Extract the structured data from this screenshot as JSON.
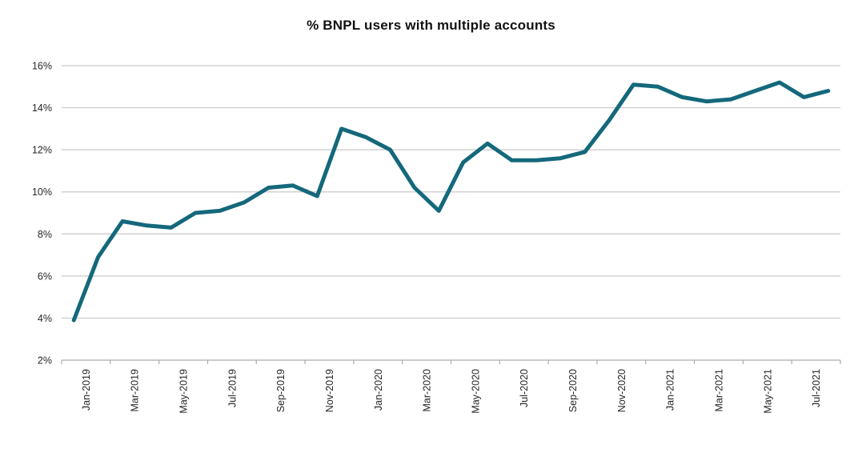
{
  "chart_data": {
    "type": "line",
    "title": "% BNPL users with multiple accounts",
    "x": [
      "Jan-2019",
      "Feb-2019",
      "Mar-2019",
      "Apr-2019",
      "May-2019",
      "Jun-2019",
      "Jul-2019",
      "Aug-2019",
      "Sep-2019",
      "Oct-2019",
      "Nov-2019",
      "Dec-2019",
      "Jan-2020",
      "Feb-2020",
      "Mar-2020",
      "Apr-2020",
      "May-2020",
      "Jun-2020",
      "Jul-2020",
      "Aug-2020",
      "Sep-2020",
      "Oct-2020",
      "Nov-2020",
      "Dec-2020",
      "Jan-2021",
      "Feb-2021",
      "Mar-2021",
      "Apr-2021",
      "May-2021",
      "Jun-2021",
      "Jul-2021",
      "Aug-2021"
    ],
    "series": [
      {
        "name": "% BNPL users with multiple accounts",
        "values": [
          3.9,
          6.9,
          8.6,
          8.4,
          8.3,
          9.0,
          9.1,
          9.5,
          10.2,
          10.3,
          9.8,
          13.0,
          12.6,
          12.0,
          10.2,
          9.1,
          11.4,
          12.3,
          11.5,
          11.5,
          11.6,
          11.9,
          13.4,
          15.1,
          15.0,
          14.5,
          14.3,
          14.4,
          14.8,
          15.2,
          14.5,
          14.8
        ]
      }
    ],
    "xlabel": "",
    "ylabel": "",
    "ylim": [
      2,
      16
    ],
    "y_ticks": [
      2,
      4,
      6,
      8,
      10,
      12,
      14,
      16
    ],
    "y_tick_labels": [
      "2%",
      "4%",
      "6%",
      "8%",
      "10%",
      "12%",
      "14%",
      "16%"
    ],
    "x_tick_labels": [
      "Jan-2019",
      "Mar-2019",
      "May-2019",
      "Jul-2019",
      "Sep-2019",
      "Nov-2019",
      "Jan-2020",
      "Mar-2020",
      "May-2020",
      "Jul-2020",
      "Sep-2020",
      "Nov-2020",
      "Jan-2021",
      "Mar-2021",
      "May-2021",
      "Jul-2021"
    ],
    "grid": true,
    "legend_position": "none",
    "colors": {
      "line": "#14687B",
      "grid": "#C9C9C9",
      "axis": "#ACACAC",
      "labels": "#262626",
      "title": "#111111",
      "background": "#FFFFFF"
    }
  }
}
